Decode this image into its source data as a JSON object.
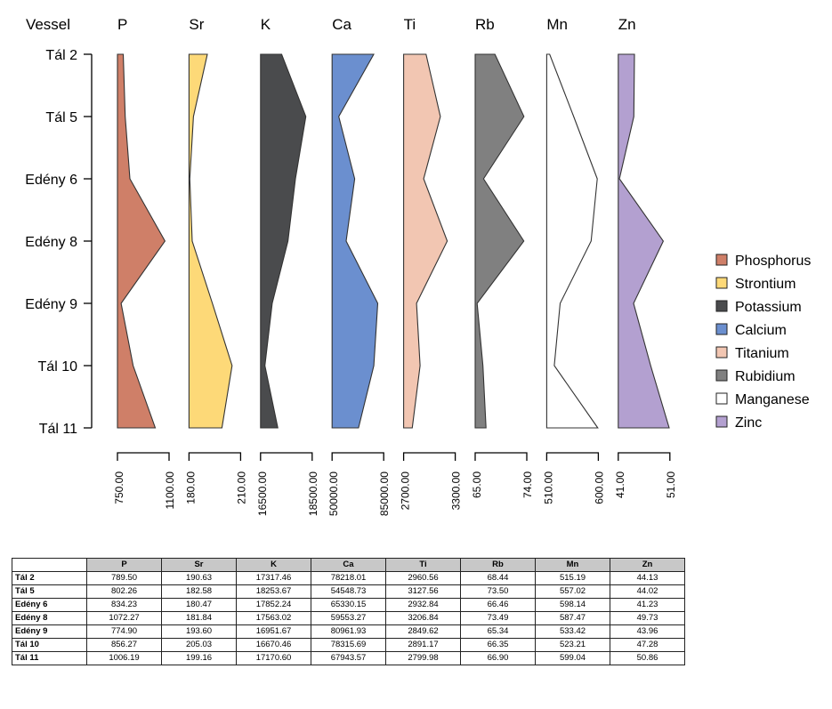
{
  "chart_data": {
    "type": "area",
    "y_axis_title": "Vessel",
    "vessels": [
      "Tál 2",
      "Tál 5",
      "Edény 6",
      "Edény 8",
      "Edény 9",
      "Tál 10",
      "Tál 11"
    ],
    "series": [
      {
        "code": "P",
        "name": "Phosphorus",
        "color": "#cf7f68",
        "range": [
          750.0,
          1100.0
        ],
        "range_labels": [
          "750.00",
          "1100.00"
        ],
        "values": [
          789.5,
          802.26,
          834.23,
          1072.27,
          774.9,
          856.27,
          1006.19
        ]
      },
      {
        "code": "Sr",
        "name": "Strontium",
        "color": "#fdd978",
        "range": [
          180.0,
          210.0
        ],
        "range_labels": [
          "180.00",
          "210.00"
        ],
        "values": [
          190.63,
          182.58,
          180.47,
          181.84,
          193.6,
          205.03,
          199.16
        ]
      },
      {
        "code": "K",
        "name": "Potassium",
        "color": "#4a4b4d",
        "range": [
          16500.0,
          18500.0
        ],
        "range_labels": [
          "16500.00",
          "18500.00"
        ],
        "values": [
          17317.46,
          18253.67,
          17852.24,
          17563.02,
          16951.67,
          16670.46,
          17170.6
        ]
      },
      {
        "code": "Ca",
        "name": "Calcium",
        "color": "#6b8fcf",
        "range": [
          50000.0,
          85000.0
        ],
        "range_labels": [
          "50000.00",
          "85000.00"
        ],
        "values": [
          78218.01,
          54548.73,
          65330.15,
          59553.27,
          80961.93,
          78315.69,
          67943.57
        ]
      },
      {
        "code": "Ti",
        "name": "Titanium",
        "color": "#f2c6b2",
        "range": [
          2700.0,
          3300.0
        ],
        "range_labels": [
          "2700.00",
          "3300.00"
        ],
        "values": [
          2960.56,
          3127.56,
          2932.84,
          3206.84,
          2849.62,
          2891.17,
          2799.98
        ]
      },
      {
        "code": "Rb",
        "name": "Rubidium",
        "color": "#808080",
        "range": [
          65.0,
          74.0
        ],
        "range_labels": [
          "65.00",
          "74.00"
        ],
        "values": [
          68.44,
          73.5,
          66.46,
          73.49,
          65.34,
          66.35,
          66.9
        ]
      },
      {
        "code": "Mn",
        "name": "Manganese",
        "color": "#ffffff",
        "range": [
          510.0,
          600.0
        ],
        "range_labels": [
          "510.00",
          "600.00"
        ],
        "values": [
          515.19,
          557.02,
          598.14,
          587.47,
          533.42,
          523.21,
          599.04
        ]
      },
      {
        "code": "Zn",
        "name": "Zinc",
        "color": "#b3a0d0",
        "range": [
          41.0,
          51.0
        ],
        "range_labels": [
          "41.00",
          "51.00"
        ],
        "values": [
          44.13,
          44.02,
          41.23,
          49.73,
          43.96,
          47.28,
          50.86
        ]
      }
    ],
    "legend_position": "right",
    "grid": false
  },
  "table": {
    "headers": [
      "",
      "P",
      "Sr",
      "K",
      "Ca",
      "Ti",
      "Rb",
      "Mn",
      "Zn"
    ],
    "rows": [
      [
        "Tál 2",
        "789.50",
        "190.63",
        "17317.46",
        "78218.01",
        "2960.56",
        "68.44",
        "515.19",
        "44.13"
      ],
      [
        "Tál 5",
        "802.26",
        "182.58",
        "18253.67",
        "54548.73",
        "3127.56",
        "73.50",
        "557.02",
        "44.02"
      ],
      [
        "Edény 6",
        "834.23",
        "180.47",
        "17852.24",
        "65330.15",
        "2932.84",
        "66.46",
        "598.14",
        "41.23"
      ],
      [
        "Edény 8",
        "1072.27",
        "181.84",
        "17563.02",
        "59553.27",
        "3206.84",
        "73.49",
        "587.47",
        "49.73"
      ],
      [
        "Edény 9",
        "774.90",
        "193.60",
        "16951.67",
        "80961.93",
        "2849.62",
        "65.34",
        "533.42",
        "43.96"
      ],
      [
        "Tál 10",
        "856.27",
        "205.03",
        "16670.46",
        "78315.69",
        "2891.17",
        "66.35",
        "523.21",
        "47.28"
      ],
      [
        "Tál 11",
        "1006.19",
        "199.16",
        "17170.60",
        "67943.57",
        "2799.98",
        "66.90",
        "599.04",
        "50.86"
      ]
    ]
  }
}
